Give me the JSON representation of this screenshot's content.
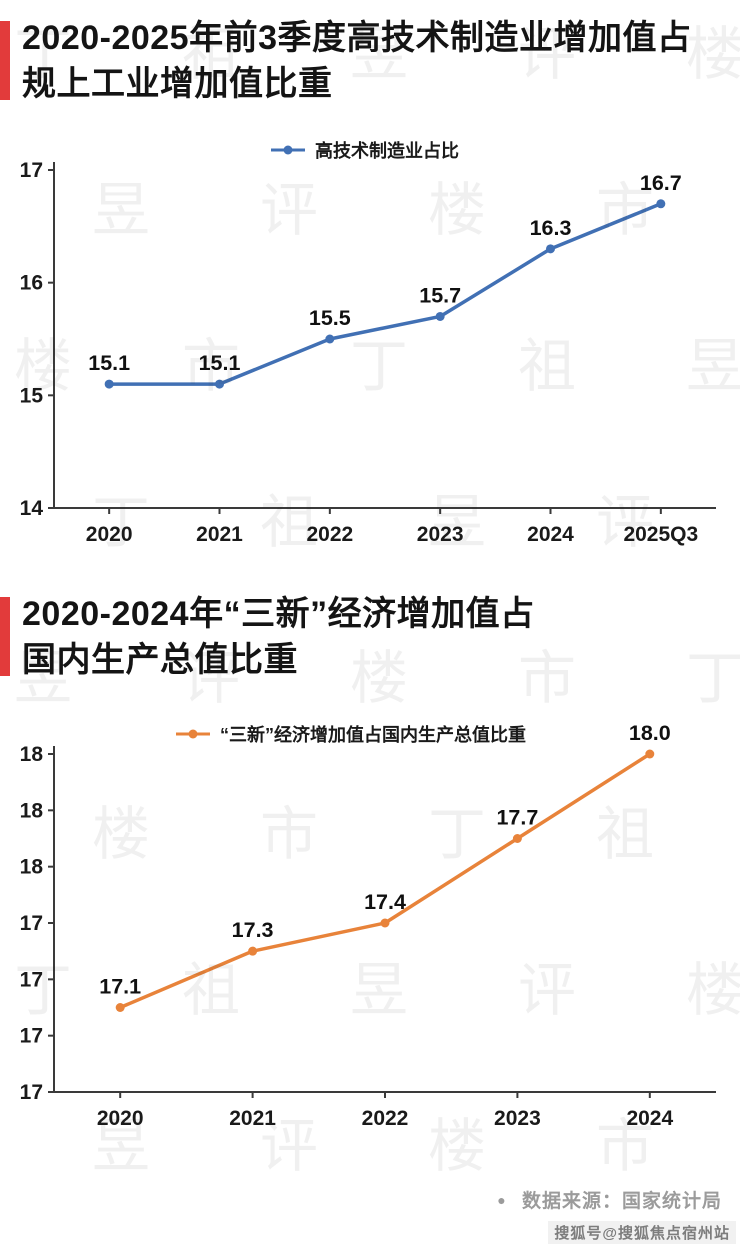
{
  "page": {
    "background": "#ffffff"
  },
  "watermark": {
    "text": "丁祖昱评楼市",
    "color": "rgba(40,40,40,0.07)"
  },
  "sections": [
    {
      "title_line1": "2020-2025年前3季度高技术制造业增加值占",
      "title_line2": "规上工业增加值比重",
      "accent_color": "#e23b3b"
    },
    {
      "title_line1": "2020-2024年“三新”经济增加值占",
      "title_line2": "国内生产总值比重",
      "accent_color": "#e23b3b"
    }
  ],
  "chart_data": [
    {
      "type": "line",
      "title": "2020-2025年前3季度高技术制造业增加值占规上工业增加值比重",
      "categories": [
        "2020",
        "2021",
        "2022",
        "2023",
        "2024",
        "2025Q3"
      ],
      "series": [
        {
          "name": "高技术制造业占比",
          "values": [
            15.1,
            15.1,
            15.5,
            15.7,
            16.3,
            16.7
          ],
          "labels": [
            "15.1",
            "15.1",
            "15.5",
            "15.7",
            "16.3",
            "16.7"
          ],
          "color": "#4170b4"
        }
      ],
      "ylim": [
        14,
        17
      ],
      "yticks": [
        14,
        15,
        16,
        17
      ],
      "ytick_labels": [
        "14",
        "15",
        "16",
        "17"
      ],
      "xlabel": "",
      "ylabel": "",
      "grid": false,
      "legend_position": "top-center"
    },
    {
      "type": "line",
      "title": "2020-2024年“三新”经济增加值占国内生产总值比重",
      "categories": [
        "2020",
        "2021",
        "2022",
        "2023",
        "2024"
      ],
      "series": [
        {
          "name": "“三新”经济增加值占国内生产总值比重",
          "values": [
            17.1,
            17.3,
            17.4,
            17.7,
            18.0
          ],
          "labels": [
            "17.1",
            "17.3",
            "17.4",
            "17.7",
            "18.0"
          ],
          "color": "#e8833a"
        }
      ],
      "ylim": [
        16.8,
        18.0
      ],
      "yticks": [
        16.8,
        17.0,
        17.2,
        17.4,
        17.6,
        17.8,
        18.0
      ],
      "ytick_labels": [
        "17",
        "17",
        "17",
        "17",
        "18",
        "18",
        "18"
      ],
      "xlabel": "",
      "ylabel": "",
      "grid": false,
      "legend_position": "top-center"
    }
  ],
  "footer": {
    "source_bullet": "●",
    "source_label": "数据来源：国家统计局",
    "sohu_watermark": "搜狐号@搜狐焦点宿州站"
  }
}
